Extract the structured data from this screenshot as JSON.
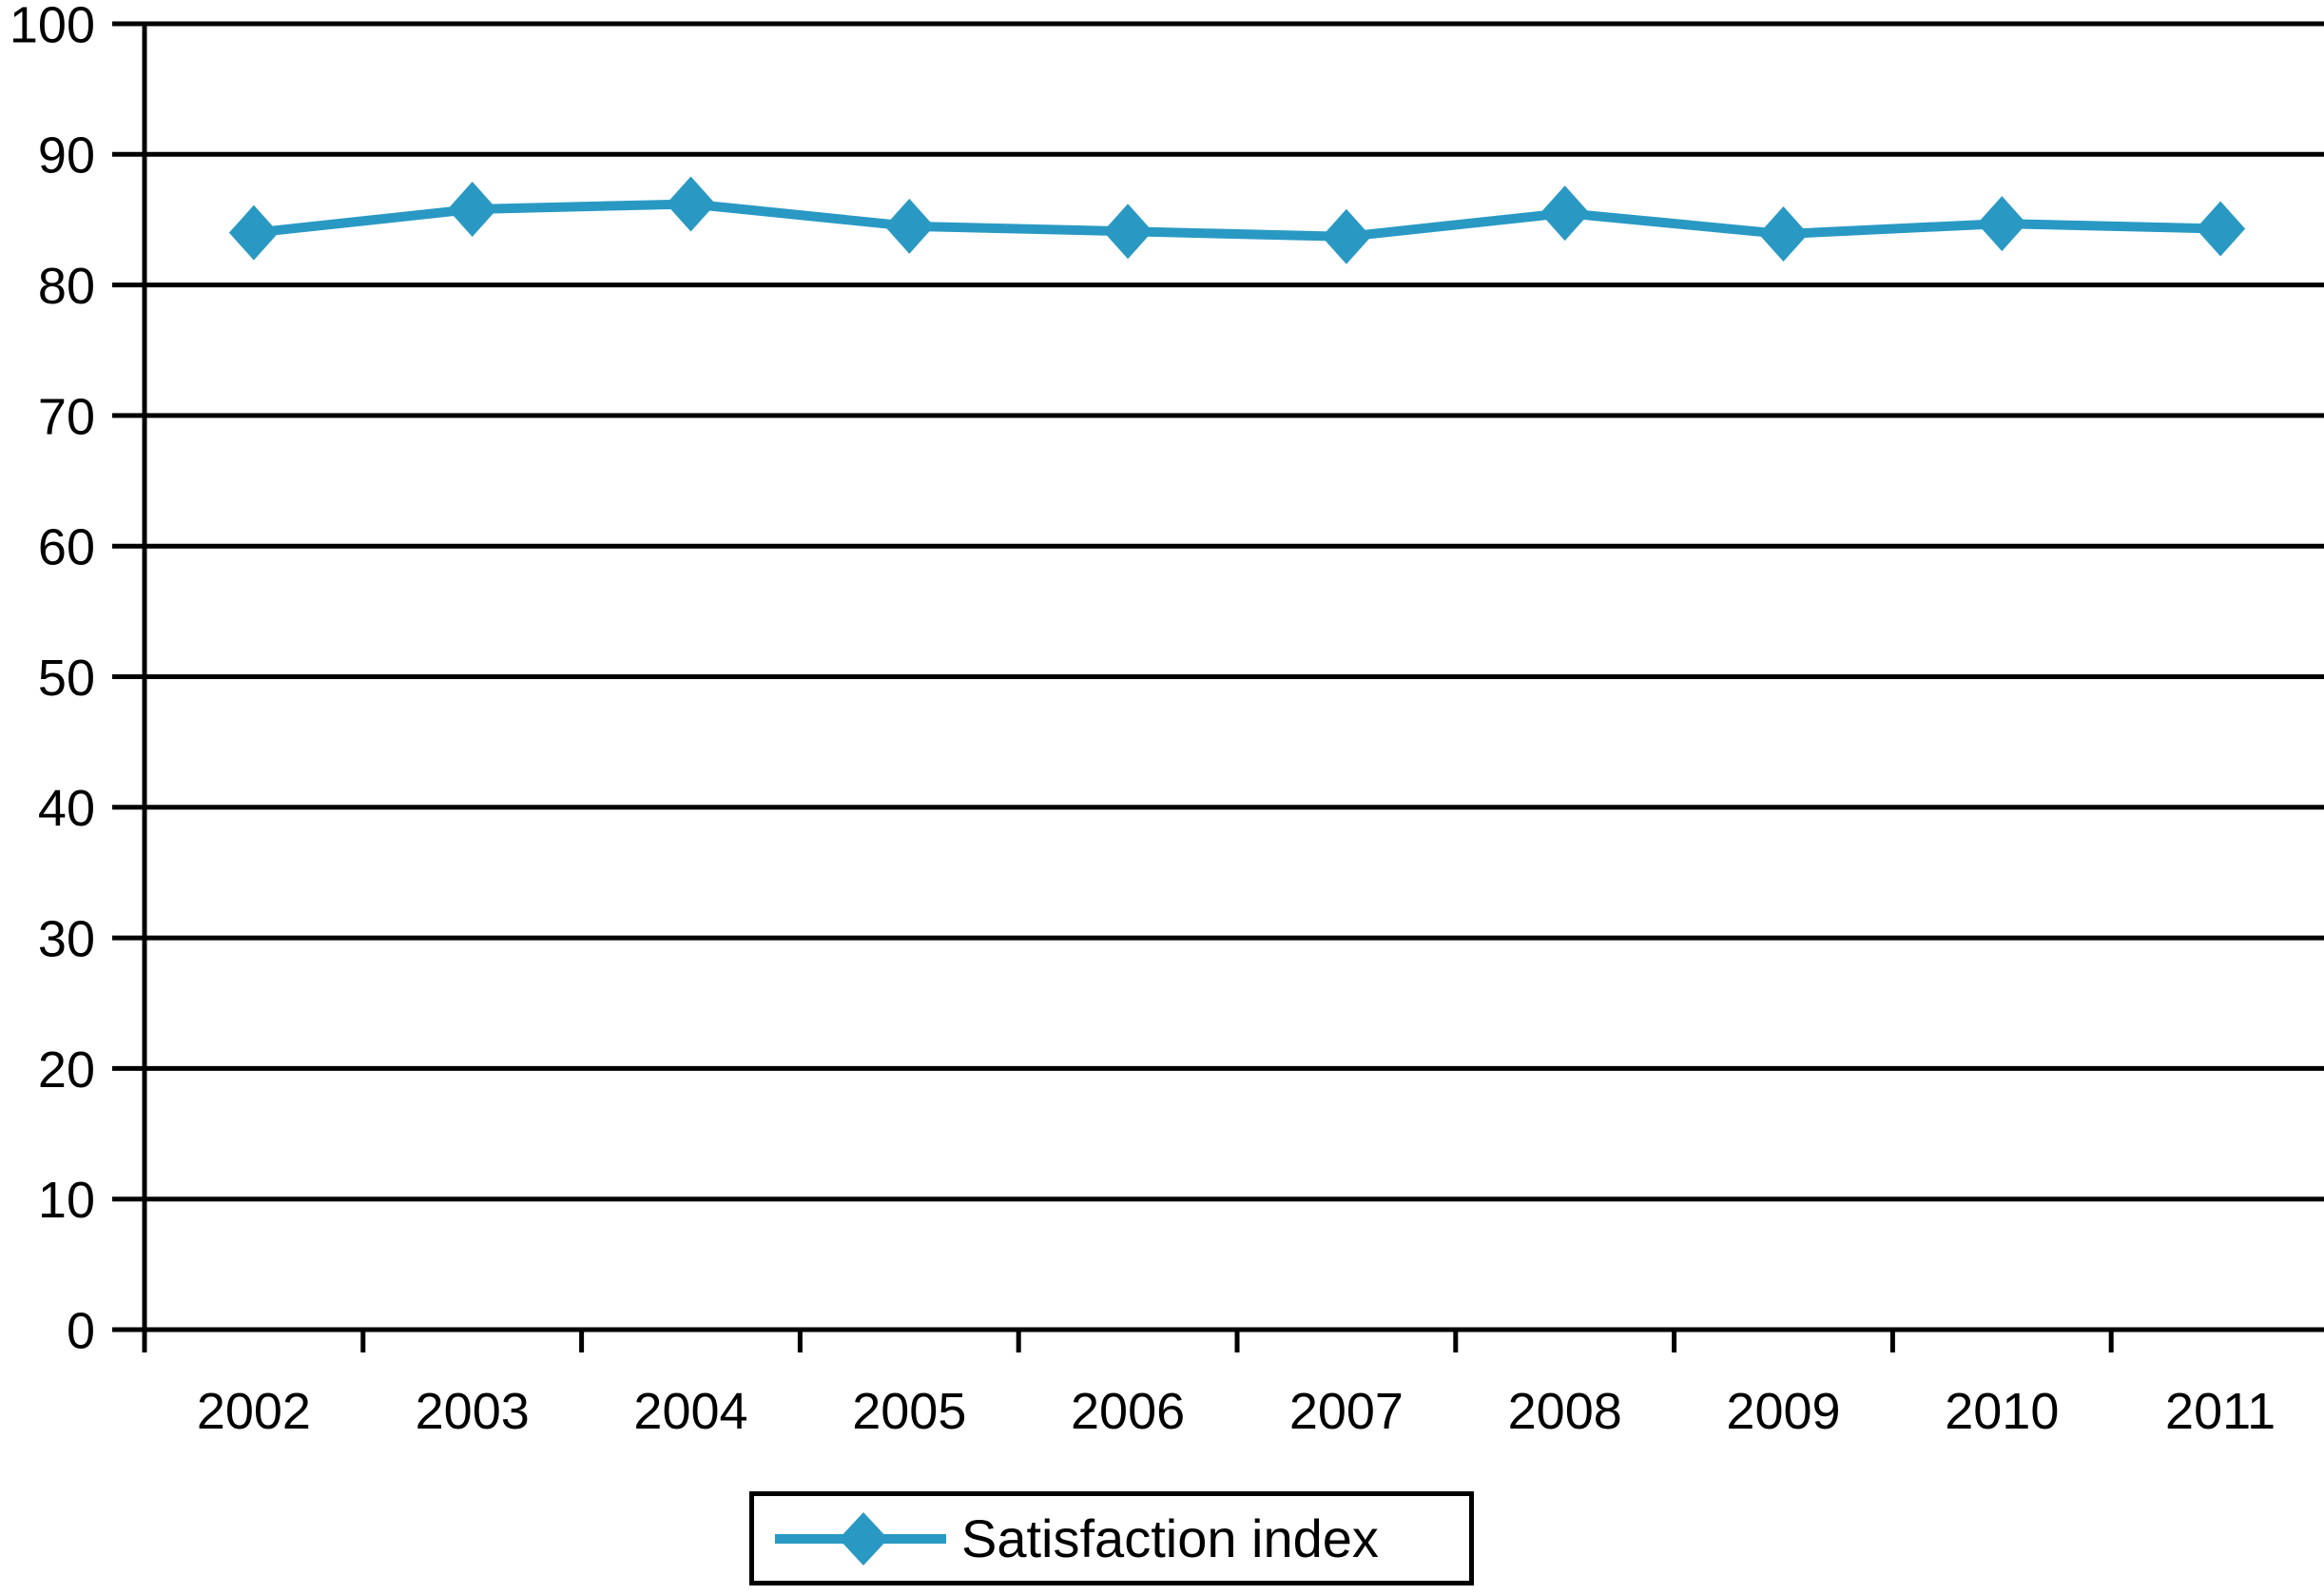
{
  "chart_data": {
    "type": "line",
    "title": "",
    "xlabel": "",
    "ylabel": "",
    "categories": [
      "2002",
      "2003",
      "2004",
      "2005",
      "2006",
      "2007",
      "2008",
      "2009",
      "2010",
      "2011"
    ],
    "series": [
      {
        "name": "Satisfaction index",
        "values": [
          84.0,
          85.8,
          86.2,
          84.5,
          84.1,
          83.7,
          85.5,
          83.9,
          84.7,
          84.3
        ]
      }
    ],
    "ylim": [
      0,
      100
    ],
    "yticks": [
      0,
      10,
      20,
      30,
      40,
      50,
      60,
      70,
      80,
      90,
      100
    ],
    "ytick_labels": [
      "0",
      "10",
      "20",
      "30",
      "40",
      "50",
      "60",
      "70",
      "80",
      "90",
      "100"
    ],
    "grid": "horizontal",
    "legend_position": "bottom-center",
    "marker": "diamond",
    "colors": {
      "line": "#2999C4",
      "axis": "#000000",
      "text": "#000000",
      "background": "#FFFFFF"
    }
  },
  "legend": {
    "label": "Satisfaction index"
  }
}
